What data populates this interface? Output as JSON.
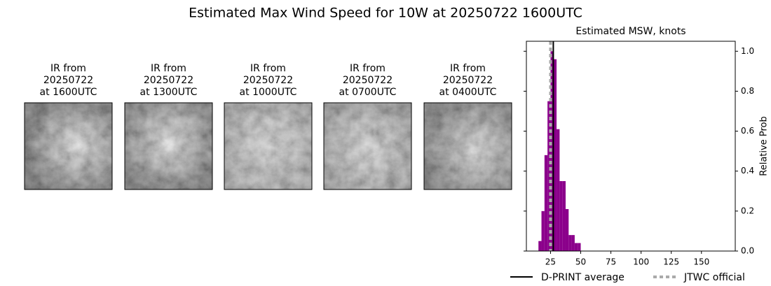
{
  "title": "Estimated Max Wind Speed for 10W at 20250722 1600UTC",
  "panels": [
    {
      "lines": [
        "IR from",
        "20250722",
        "at 1600UTC"
      ]
    },
    {
      "lines": [
        "IR from",
        "20250722",
        "at 1300UTC"
      ]
    },
    {
      "lines": [
        "IR from",
        "20250722",
        "at 1000UTC"
      ]
    },
    {
      "lines": [
        "IR from",
        "20250722",
        "at 0700UTC"
      ]
    },
    {
      "lines": [
        "IR from",
        "20250722",
        "at 0400UTC"
      ]
    }
  ],
  "chart_data": {
    "type": "histogram",
    "title": "Estimated MSW, knots",
    "y_label": "Relative Prob",
    "bins": [
      15,
      17.5,
      20,
      22.5,
      25,
      27.5,
      30,
      32.5,
      35,
      37.5,
      40,
      42.5,
      45,
      47.5,
      50
    ],
    "values": [
      0.05,
      0.2,
      0.48,
      0.75,
      1.0,
      0.96,
      0.61,
      0.35,
      0.35,
      0.21,
      0.08,
      0.08,
      0.04,
      0.04
    ],
    "color": "#8b008b",
    "xlim": [
      5,
      178
    ],
    "xticks": [
      25,
      50,
      75,
      100,
      125,
      150
    ],
    "ylim": [
      0,
      1.05
    ],
    "yticks": [
      {
        "value": 0,
        "label": "0.0"
      },
      {
        "value": 0.2,
        "label": "0.2"
      },
      {
        "value": 0.4,
        "label": "0.4"
      },
      {
        "value": 0.6,
        "label": "0.6"
      },
      {
        "value": 0.8,
        "label": "0.8"
      },
      {
        "value": 1.0,
        "label": "1.0"
      }
    ],
    "lines": [
      {
        "name": "D-PRINT average",
        "x": 27.3,
        "color": "#000000",
        "style": "solid"
      },
      {
        "name": "JTWC official",
        "x": 25,
        "color": "#aaaaaa",
        "style": "dotted"
      }
    ]
  }
}
